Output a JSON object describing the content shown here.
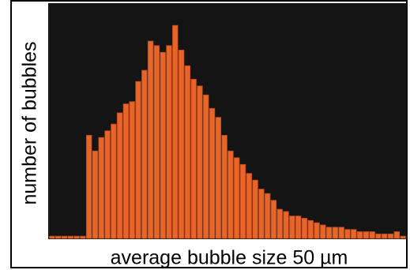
{
  "chart_data": {
    "type": "bar",
    "title": "",
    "xlabel": "average bubble size 50 µm",
    "ylabel": "number of bubbles",
    "ylim": [
      0,
      100
    ],
    "grid": false,
    "legend": "none",
    "colors": {
      "plot_background": "#141414",
      "bar": "#e8652a",
      "bar_edge": "#b84a1c"
    },
    "values": [
      1,
      1,
      1,
      1,
      1,
      1,
      46,
      39,
      45,
      48,
      51,
      56,
      60,
      61,
      70,
      75,
      88,
      86,
      83,
      86,
      95,
      84,
      77,
      71,
      68,
      64,
      58,
      54,
      46,
      39,
      36,
      33,
      29,
      26,
      22,
      20,
      17,
      13,
      12,
      10,
      10,
      9,
      8,
      7,
      6,
      5,
      5,
      5,
      4,
      4,
      3,
      3,
      3,
      2,
      2,
      2,
      3,
      1
    ]
  }
}
